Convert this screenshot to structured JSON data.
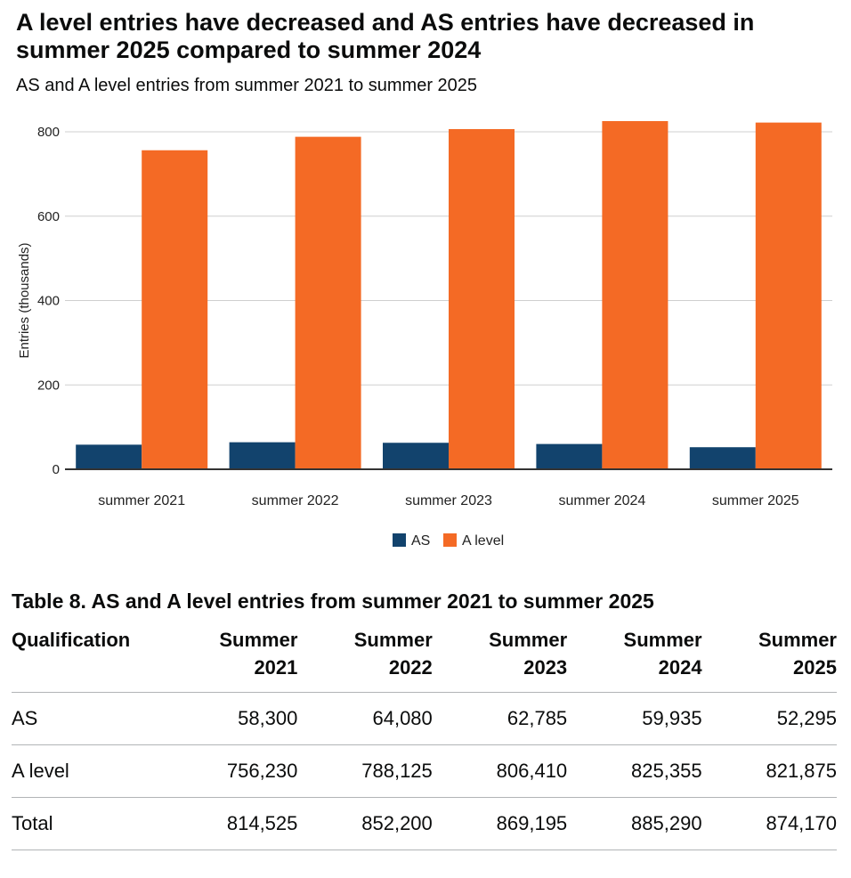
{
  "chart_data": {
    "type": "bar",
    "title": "A level entries have decreased and AS entries have decreased in summer 2025 compared to summer 2024",
    "subtitle": "AS and A level entries from summer 2021 to summer 2025",
    "xlabel": "",
    "ylabel": "Entries (thousands)",
    "ylim": [
      0,
      800
    ],
    "yticks": [
      "0",
      "200",
      "400",
      "600",
      "800"
    ],
    "categories": [
      "summer 2021",
      "summer 2022",
      "summer 2023",
      "summer 2024",
      "summer 2025"
    ],
    "series": [
      {
        "name": "AS",
        "color": "#12436d",
        "values": [
          58.3,
          64.08,
          62.785,
          59.935,
          52.295
        ]
      },
      {
        "name": "A level",
        "color": "#f46a25",
        "values": [
          756.23,
          788.125,
          806.41,
          825.355,
          821.875
        ]
      }
    ],
    "legend": "bottom-center"
  },
  "table": {
    "caption": "Table 8. AS and A level entries from summer 2021 to summer 2025",
    "headers": [
      [
        "Qualification",
        ""
      ],
      [
        "Summer",
        "2021"
      ],
      [
        "Summer",
        "2022"
      ],
      [
        "Summer",
        "2023"
      ],
      [
        "Summer",
        "2024"
      ],
      [
        "Summer",
        "2025"
      ]
    ],
    "rows": [
      [
        "AS",
        "58,300",
        "64,080",
        "62,785",
        "59,935",
        "52,295"
      ],
      [
        "A level",
        "756,230",
        "788,125",
        "806,410",
        "825,355",
        "821,875"
      ],
      [
        "Total",
        "814,525",
        "852,200",
        "869,195",
        "885,290",
        "874,170"
      ]
    ]
  }
}
